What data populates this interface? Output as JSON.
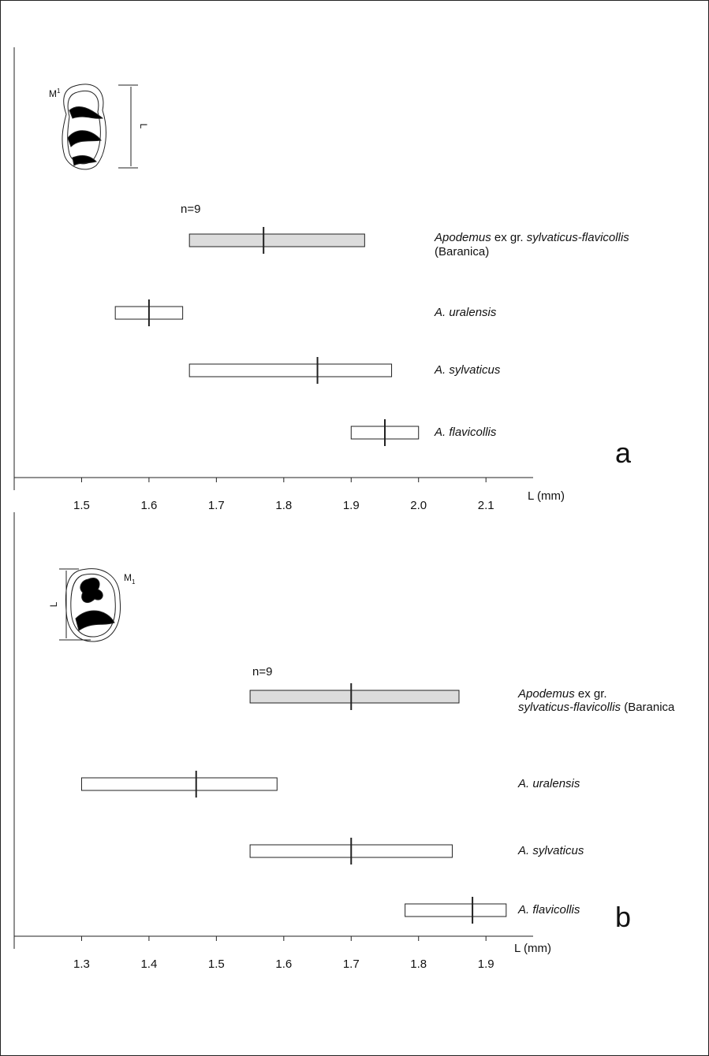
{
  "chart_data": [
    {
      "type": "range",
      "panel": "a",
      "n_label": "n=9",
      "x_label": "L (mm)",
      "tooth": {
        "letter": "M",
        "index": "1",
        "dimension": "L"
      },
      "xlim": [
        1.4,
        2.17
      ],
      "xticks": [
        1.5,
        1.6,
        1.7,
        1.8,
        1.9,
        {
          "value": 2,
          "label": "2.0"
        },
        2.1
      ],
      "categories": [
        [
          [
            {
              "t": "Apodemus",
              "i": true
            },
            {
              "t": " ex gr. "
            },
            {
              "t": "sylvaticus-flavicollis",
              "i": true
            }
          ],
          [
            {
              "t": "(Baranica)"
            }
          ]
        ],
        [
          [
            {
              "t": "A. uralensis",
              "i": true
            }
          ]
        ],
        [
          [
            {
              "t": "A. sylvaticus",
              "i": true
            }
          ]
        ],
        [
          [
            {
              "t": "A. flavicollis",
              "i": true
            }
          ]
        ]
      ],
      "min": [
        1.66,
        1.55,
        1.66,
        1.9
      ],
      "max": [
        1.92,
        1.65,
        1.96,
        2.0
      ],
      "mean": [
        1.77,
        1.6,
        1.85,
        1.95
      ],
      "colors": [
        "#dcdcdc",
        "#ffffff",
        "#ffffff",
        "#ffffff"
      ]
    },
    {
      "type": "range",
      "panel": "b",
      "n_label": "n=9",
      "x_label": "L (mm)",
      "tooth": {
        "letter": "M",
        "index": "1",
        "dimension": "L"
      },
      "xlim": [
        1.2,
        1.97
      ],
      "xticks": [
        1.3,
        1.4,
        1.5,
        1.6,
        1.7,
        1.8,
        1.9
      ],
      "categories": [
        [
          [
            {
              "t": "Apodemus",
              "i": true
            },
            {
              "t": " ex gr."
            }
          ],
          [
            {
              "t": "sylvaticus-flavicollis",
              "i": true
            },
            {
              "t": " (Baranica"
            }
          ]
        ],
        [
          [
            {
              "t": "A. uralensis",
              "i": true
            }
          ]
        ],
        [
          [
            {
              "t": "A. sylvaticus",
              "i": true
            }
          ]
        ],
        [
          [
            {
              "t": "A. flavicollis",
              "i": true
            }
          ]
        ]
      ],
      "min": [
        1.55,
        1.3,
        1.55,
        1.78
      ],
      "max": [
        1.86,
        1.59,
        1.85,
        1.93
      ],
      "mean": [
        1.7,
        1.47,
        1.7,
        1.88
      ],
      "colors": [
        "#dcdcdc",
        "#ffffff",
        "#ffffff",
        "#ffffff"
      ]
    }
  ]
}
